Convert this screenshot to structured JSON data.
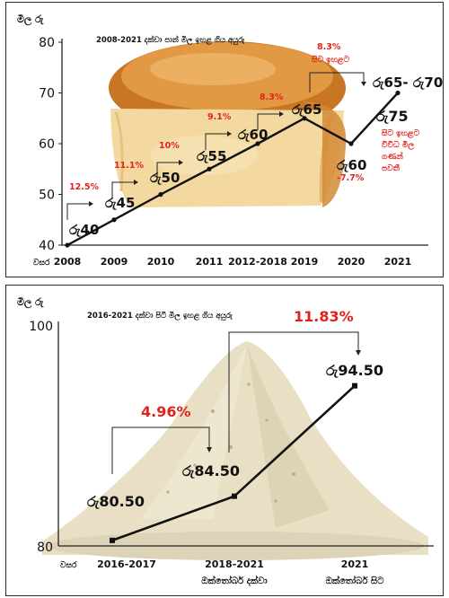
{
  "colors": {
    "line": "#111111",
    "percent": "#e0231c",
    "bread_crust": "#c87524",
    "bread_crumb": "#f3d9a0",
    "flour": "#e8dfc4"
  },
  "chart_data": [
    {
      "type": "line",
      "title": "",
      "subtitle": "2008-2021 දක්වා පාන් මිල ඉහළ ගිය අයුරු",
      "ylabel": "මිල රු",
      "xlabel": "",
      "x_prefix": "වසර",
      "ylim": [
        40,
        80
      ],
      "yticks": [
        "40",
        "50",
        "60",
        "70",
        "80"
      ],
      "categories": [
        "2008",
        "2009",
        "2010",
        "2011",
        "2012-2018",
        "2019",
        "2020",
        "2021"
      ],
      "values": [
        40,
        45,
        50,
        55,
        60,
        65,
        60,
        70
      ],
      "price_labels": [
        "රු40",
        "රු45",
        "රු50",
        "රු55",
        "රු60",
        "රු65",
        "රු60",
        "රු65- රු70"
      ],
      "percent_labels": [
        "12.5%",
        "11.1%",
        "10%",
        "9.1%",
        "8.3%"
      ],
      "annotations": {
        "top_pct": "8.3%",
        "top_pct_note": "සිට ඉහළට",
        "drop_pct": "-7.7%",
        "extra_price": "රු75",
        "extra_note": [
          "සිට ඉහළට",
          "විවිධ මිල",
          "ගණන්",
          "පවතී"
        ]
      }
    },
    {
      "type": "line",
      "title": "",
      "subtitle": "2016-2021 දක්වා පිටි මිල ඉහළ ගිය අයුරු",
      "ylabel": "මිල රු",
      "xlabel": "",
      "x_prefix": "වසර",
      "ylim": [
        80,
        100
      ],
      "yticks": [
        "80",
        "100"
      ],
      "categories": [
        "2016-2017",
        "2018-2021",
        "2021"
      ],
      "category_sublabels": [
        "",
        "ඔක්තෝබර් දක්වා",
        "ඔක්තෝබර් සිට"
      ],
      "values": [
        80.5,
        84.5,
        94.5
      ],
      "price_labels": [
        "රු80.50",
        "රු84.50",
        "රු94.50"
      ],
      "percent_labels": [
        "4.96%",
        "11.83%"
      ]
    }
  ]
}
